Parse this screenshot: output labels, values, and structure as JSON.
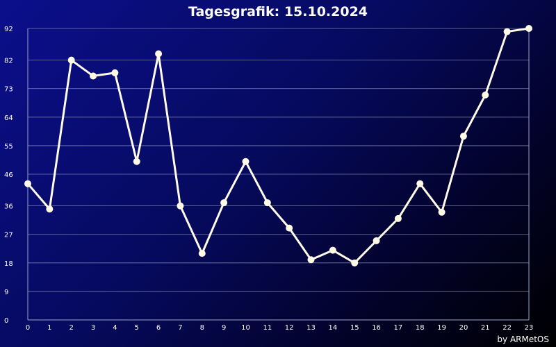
{
  "title": "Tagesgrafik: 15.10.2024",
  "credit": "by ARMetOS",
  "colors": {
    "background_start": "#0b0f8c",
    "background_end": "#000000",
    "line": "#fffbe6",
    "grid": "#9aa6c8",
    "text": "#ffffff"
  },
  "chart_data": {
    "type": "line",
    "title": "Tagesgrafik: 15.10.2024",
    "xlabel": "",
    "ylabel": "",
    "x": [
      0,
      1,
      2,
      3,
      4,
      5,
      6,
      7,
      8,
      9,
      10,
      11,
      12,
      13,
      14,
      15,
      16,
      17,
      18,
      19,
      20,
      21,
      22,
      23
    ],
    "y_ticks": [
      0,
      9,
      18,
      27,
      36,
      46,
      55,
      64,
      73,
      82,
      92
    ],
    "ylim": [
      0,
      92
    ],
    "grid": true,
    "series": [
      {
        "values": [
          43,
          35,
          82,
          77,
          78,
          50,
          84,
          36,
          21,
          37,
          50,
          37,
          29,
          19,
          22,
          18,
          25,
          32,
          43,
          34,
          58,
          71,
          91,
          92
        ]
      }
    ]
  }
}
